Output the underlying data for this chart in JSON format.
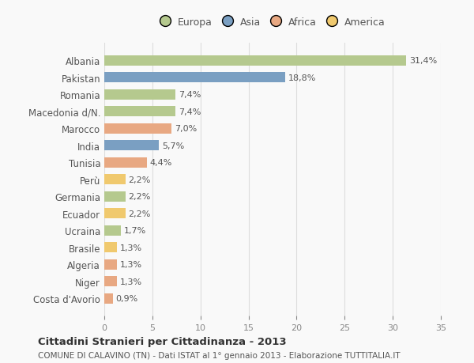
{
  "countries": [
    "Albania",
    "Pakistan",
    "Romania",
    "Macedonia d/N.",
    "Marocco",
    "India",
    "Tunisia",
    "Perù",
    "Germania",
    "Ecuador",
    "Ucraina",
    "Brasile",
    "Algeria",
    "Niger",
    "Costa d'Avorio"
  ],
  "values": [
    31.4,
    18.8,
    7.4,
    7.4,
    7.0,
    5.7,
    4.4,
    2.2,
    2.2,
    2.2,
    1.7,
    1.3,
    1.3,
    1.3,
    0.9
  ],
  "labels": [
    "31,4%",
    "18,8%",
    "7,4%",
    "7,4%",
    "7,0%",
    "5,7%",
    "4,4%",
    "2,2%",
    "2,2%",
    "2,2%",
    "1,7%",
    "1,3%",
    "1,3%",
    "1,3%",
    "0,9%"
  ],
  "colors": [
    "#b5c98e",
    "#7a9fc2",
    "#b5c98e",
    "#b5c98e",
    "#e8a882",
    "#7a9fc2",
    "#e8a882",
    "#f0c96e",
    "#b5c98e",
    "#f0c96e",
    "#b5c98e",
    "#f0c96e",
    "#e8a882",
    "#e8a882",
    "#e8a882"
  ],
  "continent_colors": {
    "Europa": "#b5c98e",
    "Asia": "#7a9fc2",
    "Africa": "#e8a882",
    "America": "#f0c96e"
  },
  "legend_order": [
    "Europa",
    "Asia",
    "Africa",
    "America"
  ],
  "xlim": [
    0,
    35
  ],
  "xticks": [
    0,
    5,
    10,
    15,
    20,
    25,
    30,
    35
  ],
  "title": "Cittadini Stranieri per Cittadinanza - 2013",
  "subtitle": "COMUNE DI CALAVINO (TN) - Dati ISTAT al 1° gennaio 2013 - Elaborazione TUTTITALIA.IT",
  "background_color": "#f9f9f9",
  "grid_color": "#dddddd"
}
